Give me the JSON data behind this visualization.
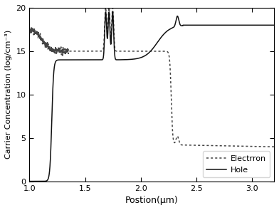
{
  "title": "",
  "xlabel": "Postion(μm)",
  "ylabel": "Carrier Concentration (log/cm⁻³)",
  "xlim": [
    1.0,
    3.2
  ],
  "ylim": [
    0,
    20
  ],
  "yticks": [
    0,
    5,
    10,
    15,
    20
  ],
  "xticks": [
    1.0,
    1.5,
    2.0,
    2.5,
    3.0
  ],
  "electron_color": "#444444",
  "hole_color": "#111111",
  "legend_labels": [
    "Electrron",
    "Hole"
  ],
  "background_color": "#ffffff"
}
